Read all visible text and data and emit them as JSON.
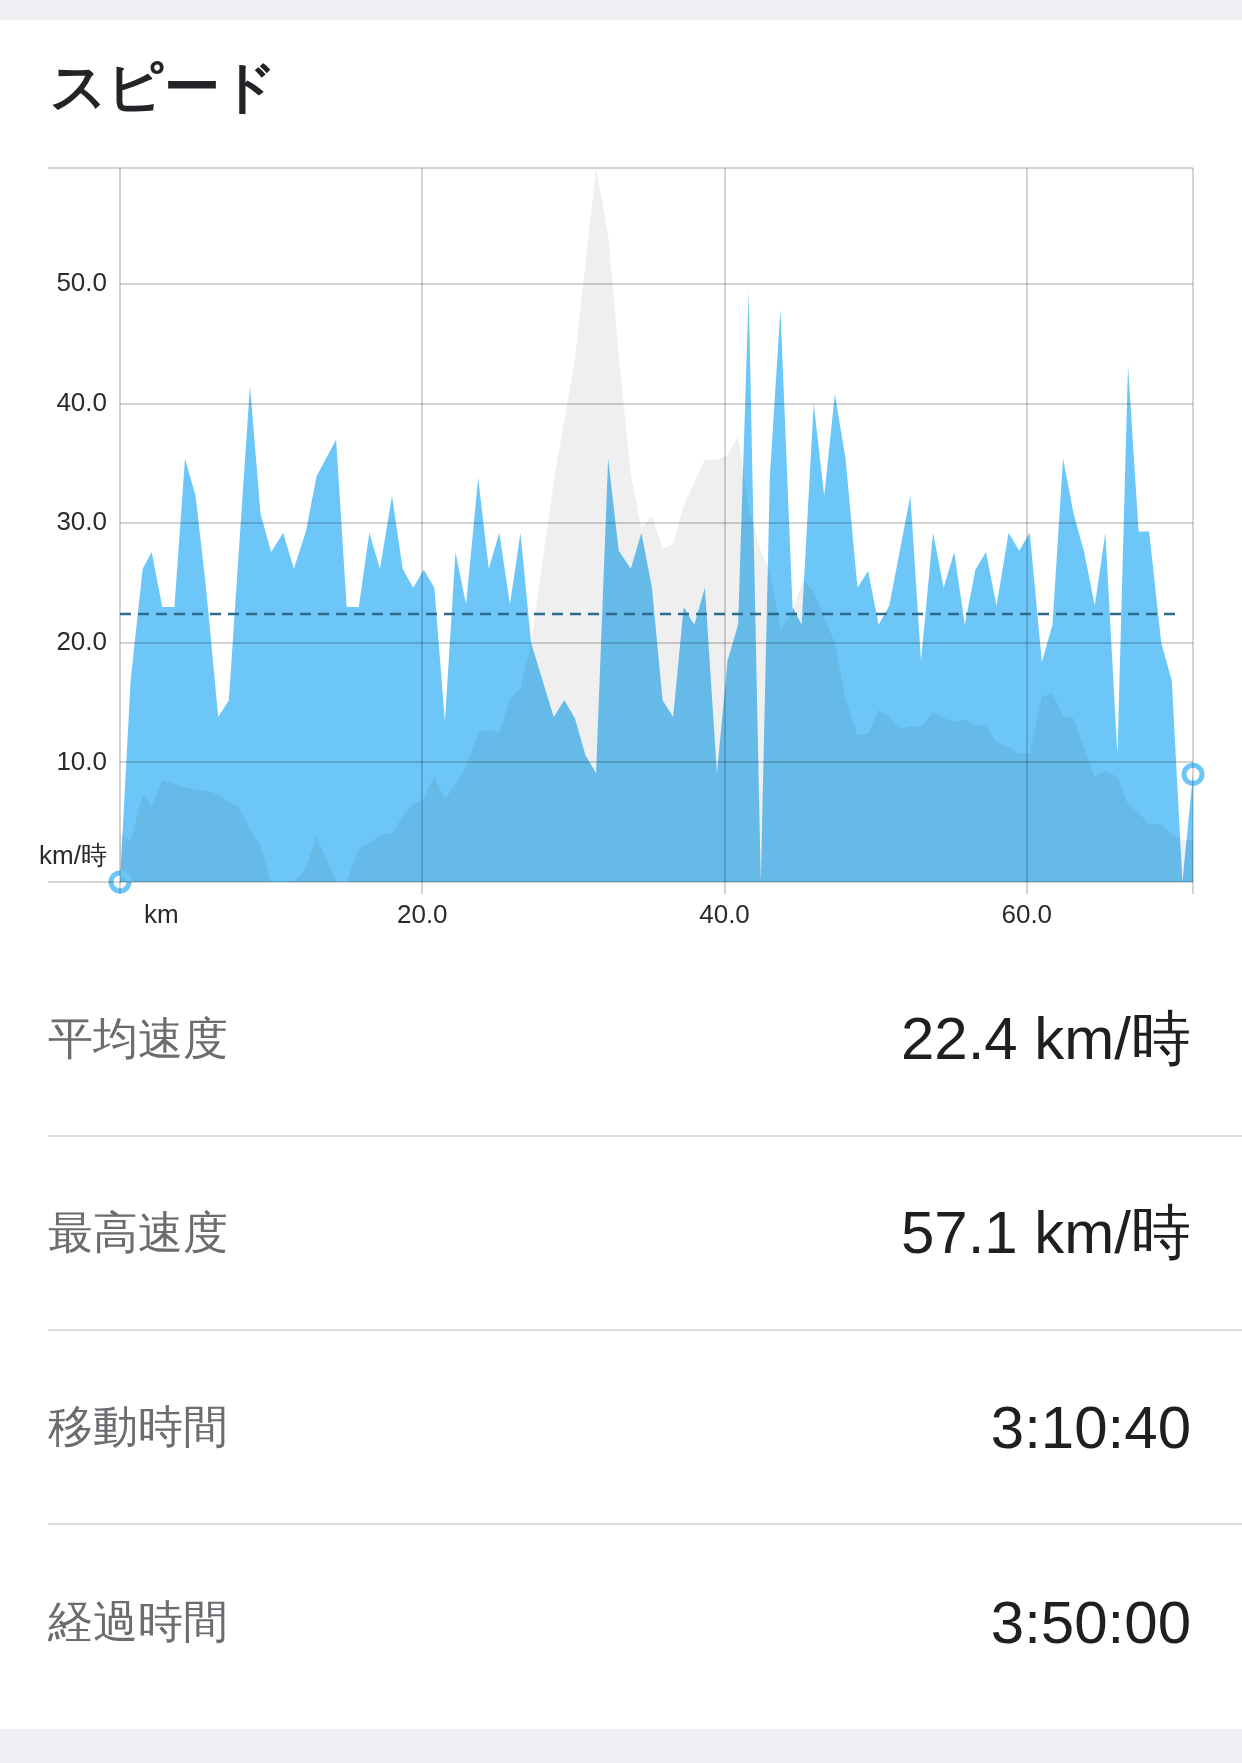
{
  "chart_data": [
    {
      "type": "area",
      "title": "スピード",
      "xlabel": "km",
      "ylabel": "km/時",
      "xlim": [
        0,
        71
      ],
      "xticks": [
        {
          "value": 0,
          "label": null
        },
        {
          "value": 20,
          "label": "20.0"
        },
        {
          "value": 40,
          "label": "40.0"
        },
        {
          "value": 60,
          "label": "60.0"
        },
        {
          "value": 71,
          "label": null
        }
      ],
      "ylim": [
        0,
        59.7
      ],
      "yticks": [
        {
          "value": 0,
          "label": null
        },
        {
          "value": 10,
          "label": "10.0"
        },
        {
          "value": 20,
          "label": "20.0"
        },
        {
          "value": 30,
          "label": "30.0"
        },
        {
          "value": 40,
          "label": "40.0"
        },
        {
          "value": 50,
          "label": "50.0"
        },
        {
          "value": 59.7,
          "label": null
        }
      ],
      "grid": true,
      "series": [
        {
          "type": "area",
          "color": "#6cc7f8",
          "x": [
            0,
            0.7,
            1.5,
            2.1,
            2.8,
            3.6,
            4.3,
            5.0,
            5.7,
            6.5,
            7.2,
            8.6,
            9.3,
            10.0,
            10.8,
            11.5,
            12.3,
            13.0,
            14.3,
            15.0,
            15.8,
            16.5,
            17.2,
            18.0,
            18.7,
            19.4,
            20.1,
            20.8,
            21.5,
            22.2,
            22.9,
            23.7,
            24.4,
            25.1,
            25.8,
            26.5,
            27.2,
            28.7,
            29.4,
            30.1,
            30.8,
            31.5,
            32.3,
            33.0,
            33.8,
            34.5,
            35.2,
            35.9,
            36.6,
            37.3,
            38.0,
            38.7,
            39.5,
            40.2,
            40.9,
            41.6,
            42.4,
            43.0,
            43.7,
            44.5,
            45.1,
            45.9,
            46.6,
            47.3,
            48.0,
            48.8,
            49.5,
            50.2,
            50.9,
            52.3,
            53.0,
            53.8,
            54.5,
            55.2,
            55.9,
            56.6,
            57.3,
            58.0,
            58.8,
            59.5,
            60.2,
            61.0,
            61.7,
            62.4,
            63.1,
            63.8,
            64.5,
            65.2,
            66.0,
            66.7,
            67.4,
            68.1,
            68.9,
            69.6,
            70.3,
            71.0
          ],
          "values": [
            0,
            16.8,
            26.2,
            27.6,
            23.0,
            23.0,
            35.4,
            32.3,
            24.5,
            13.8,
            15.2,
            41.5,
            30.8,
            27.6,
            29.2,
            26.2,
            29.3,
            33.9,
            37.0,
            23.0,
            23.0,
            29.2,
            26.2,
            32.3,
            26.2,
            24.6,
            26.1,
            24.6,
            13.4,
            27.6,
            23.2,
            33.8,
            26.2,
            29.2,
            23.2,
            29.2,
            20.0,
            13.8,
            15.2,
            13.7,
            10.6,
            9.1,
            35.4,
            27.7,
            26.2,
            29.2,
            24.6,
            15.2,
            13.8,
            23.0,
            21.5,
            24.6,
            9.1,
            18.5,
            21.5,
            49.4,
            0,
            33.9,
            47.9,
            23.0,
            21.5,
            40.0,
            32.3,
            40.8,
            35.5,
            24.6,
            26.0,
            21.5,
            23.1,
            32.3,
            18.5,
            29.2,
            24.6,
            27.6,
            21.5,
            26.1,
            27.6,
            23.1,
            29.2,
            27.7,
            29.2,
            18.4,
            21.5,
            35.4,
            30.8,
            27.6,
            23.1,
            29.2,
            10.6,
            43.2,
            29.3,
            29.3,
            20.0,
            16.8,
            0,
            9.0
          ]
        },
        {
          "type": "area",
          "color": "#efefef",
          "x": [
            0,
            0.7,
            1.5,
            2.1,
            2.8,
            3.6,
            4.3,
            5.0,
            5.7,
            6.5,
            7.2,
            7.9,
            8.6,
            9.3,
            10.0,
            11.5,
            12.3,
            13.0,
            13.7,
            14.3,
            15.0,
            15.8,
            16.5,
            17.2,
            18.0,
            18.7,
            19.4,
            20.1,
            20.8,
            21.5,
            22.2,
            22.9,
            23.7,
            24.4,
            25.1,
            25.8,
            26.5,
            27.2,
            28.7,
            30.1,
            31.5,
            32.3,
            33.0,
            33.8,
            34.5,
            35.2,
            35.9,
            36.6,
            37.3,
            38.7,
            39.5,
            40.2,
            40.9,
            41.6,
            42.4,
            43.0,
            43.7,
            44.5,
            45.2,
            45.9,
            47.3,
            48.0,
            48.8,
            49.5,
            50.2,
            50.9,
            51.6,
            52.3,
            53.0,
            53.8,
            54.5,
            55.2,
            55.9,
            56.6,
            57.3,
            58.0,
            58.8,
            59.5,
            60.2,
            61.0,
            61.7,
            62.4,
            63.1,
            63.8,
            64.5,
            65.2,
            66.0,
            66.7,
            67.4,
            68.1,
            68.9,
            69.6,
            70.3,
            71.0
          ],
          "values": [
            4.0,
            3.4,
            7.3,
            6.4,
            8.5,
            8.2,
            7.9,
            7.7,
            7.7,
            7.3,
            6.7,
            6.2,
            4.4,
            3.1,
            0,
            0,
            1.2,
            3.8,
            1.8,
            0,
            0,
            2.8,
            3.3,
            3.9,
            4.1,
            5.5,
            6.5,
            7.0,
            8.9,
            6.9,
            8.2,
            9.7,
            12.5,
            12.7,
            12.5,
            15.3,
            16.2,
            20.0,
            33.5,
            43.7,
            59.7,
            54.1,
            44.1,
            34.1,
            29.6,
            30.6,
            27.9,
            28.2,
            31.5,
            35.3,
            35.3,
            35.7,
            37.3,
            31.3,
            27.7,
            26.0,
            21.1,
            22.6,
            25.3,
            24.3,
            20.0,
            15.3,
            12.3,
            12.4,
            14.4,
            13.8,
            12.8,
            13.0,
            13.0,
            14.2,
            13.7,
            13.4,
            13.6,
            13.1,
            13.1,
            11.7,
            11.3,
            10.7,
            10.8,
            15.5,
            15.8,
            13.9,
            13.7,
            11.2,
            8.8,
            9.3,
            8.8,
            6.5,
            5.8,
            4.8,
            4.8,
            4.0,
            3.5,
            3.5
          ]
        },
        {
          "type": "scatter",
          "color": "#6cc7f8",
          "marker": "circle",
          "x": [
            0,
            71.0
          ],
          "values": [
            0,
            9.0
          ]
        }
      ],
      "ref_lines": [
        {
          "axis": "y",
          "value": 22.4,
          "color": "#2c6b8d",
          "line_style": "dashed"
        }
      ]
    },
    {
      "type": "other",
      "annotations": [
        "平均速度",
        "22.4 km/時",
        "最高速度",
        "57.1 km/時",
        "移動時間",
        "3:10:40",
        "経過時間",
        "3:50:00"
      ]
    }
  ]
}
